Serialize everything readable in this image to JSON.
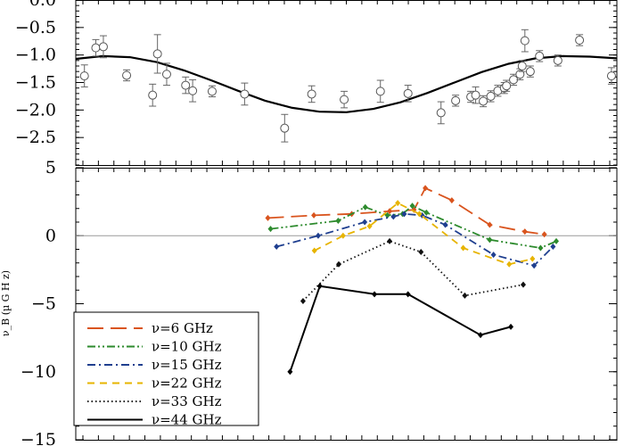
{
  "chart_data": [
    {
      "type": "scatter",
      "title": "",
      "xlabel": "",
      "ylabel": "",
      "ylim": [
        -3.0,
        0.0
      ],
      "y_ticks": [
        0.0,
        -0.5,
        -1.0,
        -1.5,
        -2.0,
        -2.5
      ],
      "y_tick_labels": [
        "0.0",
        "−0.5",
        "−1.0",
        "−1.5",
        "−2.0",
        "−2.5"
      ],
      "xlim": [
        0,
        100
      ],
      "grid": false,
      "series": [
        {
          "marker": "open-circle-with-errorbars",
          "color": "#555555",
          "points": [
            {
              "x": 1.6,
              "y": -1.38,
              "err": 0.2
            },
            {
              "x": 3.7,
              "y": -0.87,
              "err": 0.15
            },
            {
              "x": 5.1,
              "y": -0.85,
              "err": 0.2
            },
            {
              "x": 9.4,
              "y": -1.37,
              "err": 0.1
            },
            {
              "x": 14.2,
              "y": -1.73,
              "err": 0.2
            },
            {
              "x": 15.1,
              "y": -0.98,
              "err": 0.35
            },
            {
              "x": 16.8,
              "y": -1.35,
              "err": 0.2
            },
            {
              "x": 20.3,
              "y": -1.55,
              "err": 0.15
            },
            {
              "x": 21.6,
              "y": -1.65,
              "err": 0.2
            },
            {
              "x": 25.2,
              "y": -1.66,
              "err": 0.1
            },
            {
              "x": 31.2,
              "y": -1.71,
              "err": 0.2
            },
            {
              "x": 38.6,
              "y": -2.33,
              "err": 0.25
            },
            {
              "x": 43.6,
              "y": -1.71,
              "err": 0.15
            },
            {
              "x": 49.6,
              "y": -1.81,
              "err": 0.15
            },
            {
              "x": 56.3,
              "y": -1.66,
              "err": 0.2
            },
            {
              "x": 61.4,
              "y": -1.7,
              "err": 0.15
            },
            {
              "x": 67.5,
              "y": -2.05,
              "err": 0.2
            },
            {
              "x": 70.2,
              "y": -1.83,
              "err": 0.1
            },
            {
              "x": 73.0,
              "y": -1.76,
              "err": 0.1
            },
            {
              "x": 73.9,
              "y": -1.73,
              "err": 0.15
            },
            {
              "x": 75.3,
              "y": -1.84,
              "err": 0.1
            },
            {
              "x": 76.7,
              "y": -1.75,
              "err": 0.1
            },
            {
              "x": 78.0,
              "y": -1.65,
              "err": 0.1
            },
            {
              "x": 79.2,
              "y": -1.6,
              "err": 0.1
            },
            {
              "x": 79.6,
              "y": -1.56,
              "err": 0.1
            },
            {
              "x": 80.9,
              "y": -1.45,
              "err": 0.1
            },
            {
              "x": 82.1,
              "y": -1.35,
              "err": 0.1
            },
            {
              "x": 82.5,
              "y": -1.2,
              "err": 0.1
            },
            {
              "x": 83.0,
              "y": -0.74,
              "err": 0.2
            },
            {
              "x": 84.0,
              "y": -1.3,
              "err": 0.1
            },
            {
              "x": 85.7,
              "y": -1.02,
              "err": 0.1
            },
            {
              "x": 89.1,
              "y": -1.1,
              "err": 0.1
            },
            {
              "x": 93.1,
              "y": -0.73,
              "err": 0.1
            },
            {
              "x": 99.0,
              "y": -1.38,
              "err": 0.15
            }
          ]
        },
        {
          "type": "line",
          "marker": "none",
          "color": "#000000",
          "x": [
            0,
            5,
            10,
            15,
            20,
            25,
            30,
            35,
            40,
            45,
            50,
            55,
            60,
            65,
            70,
            75,
            80,
            85,
            90,
            95,
            100
          ],
          "y": [
            -1.07,
            -1.02,
            -1.04,
            -1.13,
            -1.28,
            -1.46,
            -1.65,
            -1.83,
            -1.96,
            -2.03,
            -2.04,
            -1.98,
            -1.86,
            -1.69,
            -1.5,
            -1.31,
            -1.16,
            -1.06,
            -1.02,
            -1.03,
            -1.06
          ]
        }
      ]
    },
    {
      "type": "line",
      "title": "",
      "xlabel": "",
      "ylabel": "ν_B (µ G H z)",
      "ylim": [
        -15,
        5
      ],
      "y_ticks": [
        5,
        0,
        -5,
        -10,
        -15
      ],
      "y_tick_labels": [
        "5",
        "0",
        "−5",
        "−10",
        "−15"
      ],
      "xlim": [
        0,
        100
      ],
      "grid": false,
      "zero_line": true,
      "legend_placement": "bottom-left",
      "series": [
        {
          "name": "ν=6 GHz",
          "color": "#d9541e",
          "dash": "long-dash",
          "x": [
            35.5,
            44.0,
            51.0,
            58.0,
            62.5,
            64.6,
            69.5,
            76.5,
            83.0,
            86.6
          ],
          "y": [
            1.3,
            1.5,
            1.6,
            1.8,
            1.9,
            3.5,
            2.6,
            0.8,
            0.3,
            0.1
          ]
        },
        {
          "name": "ν=10 GHz",
          "color": "#2e8b2e",
          "dash": "dash-dot-dot",
          "x": [
            36.0,
            48.5,
            53.5,
            57.6,
            60.4,
            62.2,
            64.8,
            76.5,
            85.9,
            88.8
          ],
          "y": [
            0.5,
            1.1,
            2.1,
            1.5,
            1.6,
            2.2,
            1.7,
            -0.3,
            -0.9,
            -0.4
          ]
        },
        {
          "name": "ν=15 GHz",
          "color": "#1f3f8f",
          "dash": "dash-dot",
          "x": [
            37.1,
            44.8,
            53.4,
            58.7,
            60.7,
            64.0,
            68.3,
            77.2,
            84.7,
            88.2
          ],
          "y": [
            -0.8,
            0.0,
            1.0,
            1.4,
            1.6,
            1.5,
            0.8,
            -1.4,
            -2.2,
            -0.8
          ]
        },
        {
          "name": "ν=22 GHz",
          "color": "#e7b400",
          "dash": "dashed",
          "x": [
            44.1,
            49.4,
            54.3,
            59.5,
            63.5,
            71.6,
            80.1,
            84.4
          ],
          "y": [
            -1.1,
            0.0,
            0.7,
            2.4,
            1.6,
            -0.9,
            -2.1,
            -1.7
          ]
        },
        {
          "name": "ν=33 GHz",
          "color": "#111111",
          "dash": "dotted",
          "x": [
            42.0,
            48.6,
            58.0,
            63.8,
            71.9,
            82.7
          ],
          "y": [
            -4.8,
            -2.1,
            -0.4,
            -1.2,
            -4.4,
            -3.6
          ]
        },
        {
          "name": "ν=44 GHz",
          "color": "#000000",
          "dash": "solid",
          "x": [
            39.6,
            45.1,
            55.2,
            61.4,
            74.8,
            80.4
          ],
          "y": [
            -10.0,
            -3.7,
            -4.3,
            -4.3,
            -7.3,
            -6.7
          ]
        }
      ]
    }
  ]
}
